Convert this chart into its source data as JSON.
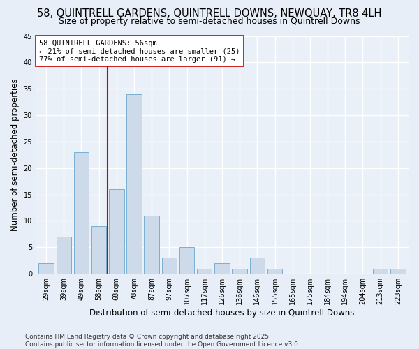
{
  "title": "58, QUINTRELL GARDENS, QUINTRELL DOWNS, NEWQUAY, TR8 4LH",
  "subtitle": "Size of property relative to semi-detached houses in Quintrell Downs",
  "xlabel": "Distribution of semi-detached houses by size in Quintrell Downs",
  "ylabel": "Number of semi-detached properties",
  "categories": [
    "29sqm",
    "39sqm",
    "49sqm",
    "58sqm",
    "68sqm",
    "78sqm",
    "87sqm",
    "97sqm",
    "107sqm",
    "117sqm",
    "126sqm",
    "136sqm",
    "146sqm",
    "155sqm",
    "165sqm",
    "175sqm",
    "184sqm",
    "194sqm",
    "204sqm",
    "213sqm",
    "223sqm"
  ],
  "values": [
    2,
    7,
    23,
    9,
    16,
    34,
    11,
    3,
    5,
    1,
    2,
    1,
    3,
    1,
    0,
    0,
    0,
    0,
    0,
    1,
    1
  ],
  "bar_color": "#ccdaea",
  "bar_edge_color": "#7aafd4",
  "vline_color": "#cc0000",
  "vline_index": 3,
  "annotation_title": "58 QUINTRELL GARDENS: 56sqm",
  "annotation_line2": "← 21% of semi-detached houses are smaller (25)",
  "annotation_line3": "77% of semi-detached houses are larger (91) →",
  "annotation_box_facecolor": "#ffffff",
  "annotation_box_edgecolor": "#cc0000",
  "ylim": [
    0,
    45
  ],
  "yticks": [
    0,
    5,
    10,
    15,
    20,
    25,
    30,
    35,
    40,
    45
  ],
  "footnote_line1": "Contains HM Land Registry data © Crown copyright and database right 2025.",
  "footnote_line2": "Contains public sector information licensed under the Open Government Licence v3.0.",
  "bg_color": "#e8eef8",
  "plot_bg_color": "#eaf0f8",
  "title_fontsize": 10.5,
  "subtitle_fontsize": 9,
  "axis_label_fontsize": 8.5,
  "tick_fontsize": 7,
  "annotation_fontsize": 7.5,
  "footnote_fontsize": 6.5,
  "grid_color": "#ffffff",
  "grid_linewidth": 1.0
}
